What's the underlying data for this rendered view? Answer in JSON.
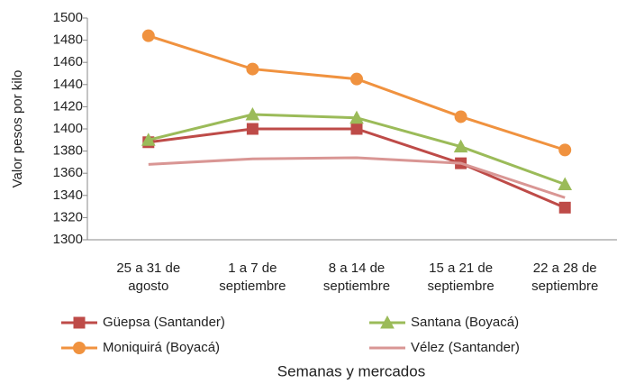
{
  "chart_data": {
    "type": "line",
    "categories": [
      [
        "25 a 31 de",
        "agosto"
      ],
      [
        "1 a 7 de",
        "septiembre"
      ],
      [
        "8 a 14 de",
        "septiembre"
      ],
      [
        "15 a 21 de",
        "septiembre"
      ],
      [
        "22 a 28 de",
        "septiembre"
      ]
    ],
    "series": [
      {
        "name": "Güepsa (Santander)",
        "color": "#be4b48",
        "marker": "square",
        "values": [
          1388,
          1400,
          1400,
          1369,
          1329
        ]
      },
      {
        "name": "Santana (Boyacá)",
        "color": "#9bbb59",
        "marker": "triangle",
        "values": [
          1390,
          1413,
          1410,
          1384,
          1350
        ]
      },
      {
        "name": "Moniquirá (Boyacá)",
        "color": "#f0923f",
        "marker": "circle",
        "values": [
          1484,
          1454,
          1445,
          1411,
          1381
        ]
      },
      {
        "name": "Vélez (Santander)",
        "color": "#d99694",
        "marker": "none",
        "values": [
          1368,
          1373,
          1374,
          1369,
          1338
        ]
      }
    ],
    "ylabel": "Valor pesos por kilo",
    "xlabel": "Semanas y mercados",
    "ylim": [
      1300,
      1500
    ],
    "yticks": [
      1300,
      1320,
      1340,
      1360,
      1380,
      1400,
      1420,
      1440,
      1460,
      1480,
      1500
    ],
    "grid": false
  }
}
